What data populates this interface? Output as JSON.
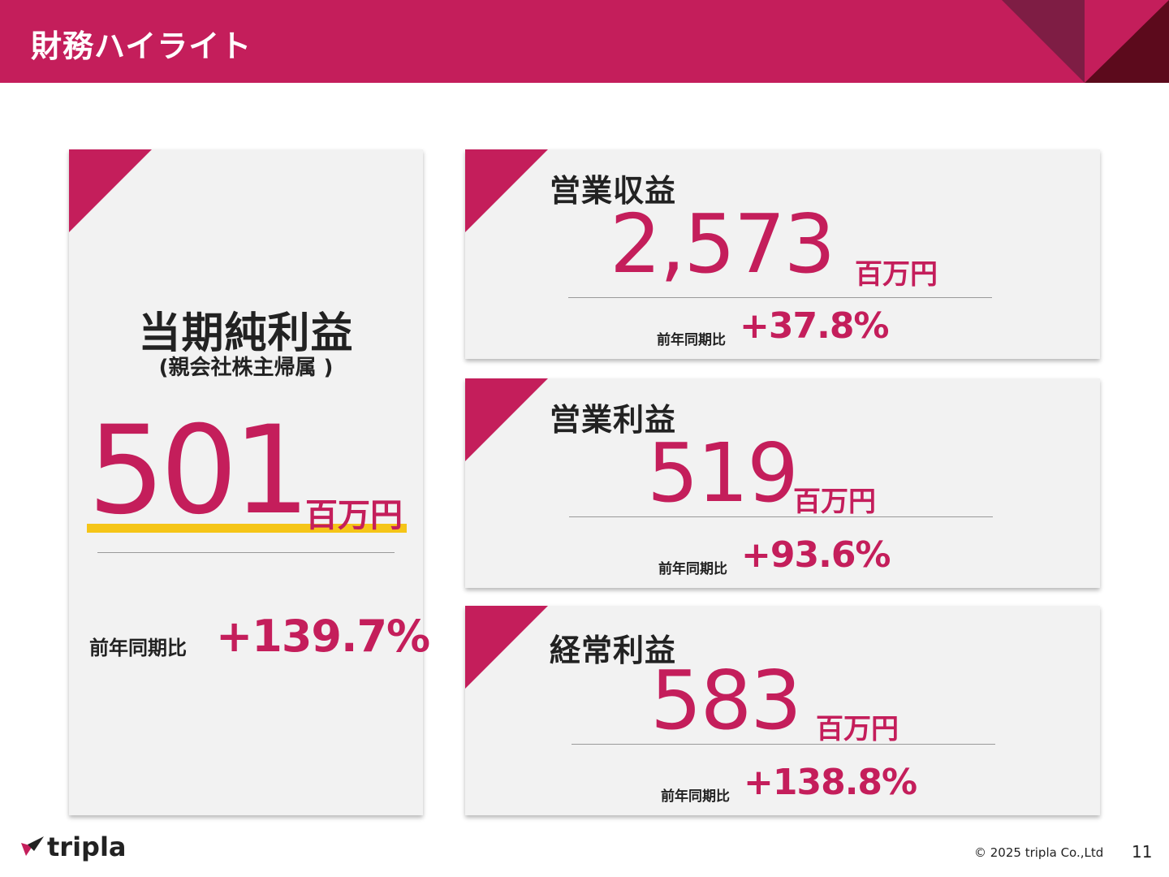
{
  "header": {
    "title": "財務ハイライト",
    "accent_color": "#c41e5b"
  },
  "net_income": {
    "title": "当期純利益",
    "subtitle": "(親会社株主帰属 )",
    "value": "501",
    "unit": "百万円",
    "yoy_label": "前年同期比",
    "yoy_value": "+139.7%"
  },
  "operating_revenue": {
    "title": "営業収益",
    "value": "2,573",
    "unit": "百万円",
    "yoy_label": "前年同期比",
    "yoy_value": "+37.8%"
  },
  "operating_income": {
    "title": "営業利益",
    "value": "519",
    "unit": "百万円",
    "yoy_label": "前年同期比",
    "yoy_value": "+93.6%"
  },
  "ordinary_income": {
    "title": "経常利益",
    "value": "583",
    "unit": "百万円",
    "yoy_label": "前年同期比",
    "yoy_value": "+138.8%"
  },
  "footer": {
    "logo_text": "tripla",
    "logo_icon": "tripla-bird-icon",
    "copyright": "© 2025 tripla Co.,Ltd",
    "page_number": "11"
  }
}
